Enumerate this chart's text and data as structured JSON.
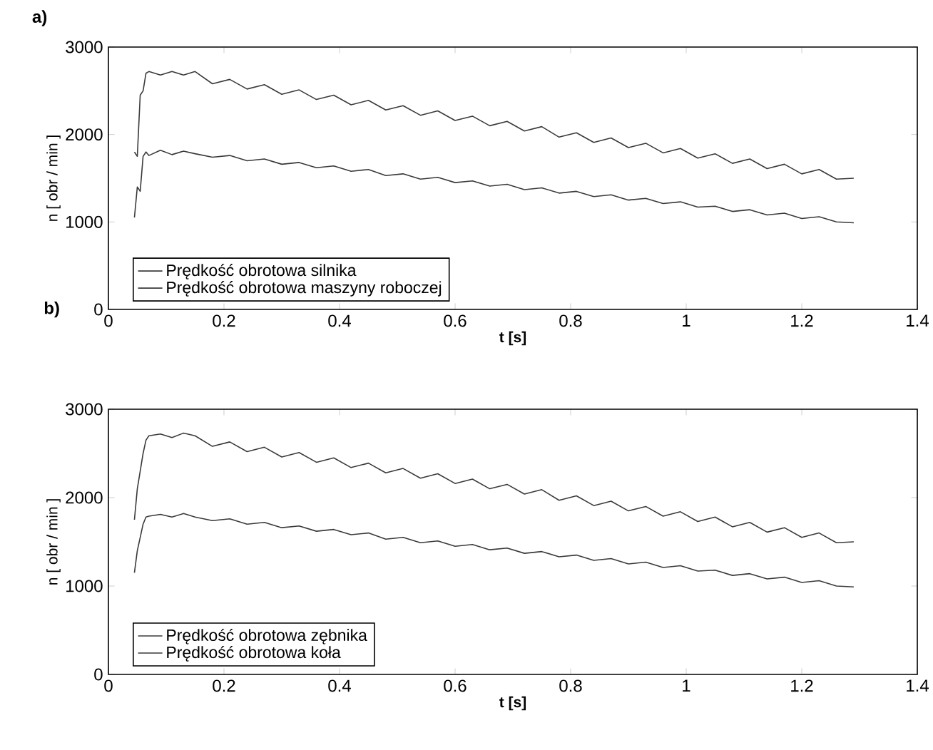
{
  "chart_data": [
    {
      "type": "line",
      "annotations": [
        "a)"
      ],
      "xlabel": "t [s]",
      "ylabel": "n [ obr / min ]",
      "xlim": [
        0,
        1.4
      ],
      "ylim": [
        0,
        3000
      ],
      "xticks": [
        0,
        0.2,
        0.4,
        0.6,
        0.8,
        1,
        1.2,
        1.4
      ],
      "yticks": [
        0,
        1000,
        2000,
        3000
      ],
      "legend": "bottom left",
      "series": [
        {
          "name": "Prędkość obrotowa silnika",
          "color": "#3a3a3a",
          "x": [
            0.045,
            0.05,
            0.055,
            0.06,
            0.065,
            0.07,
            0.09,
            0.11,
            0.13,
            0.15,
            0.18,
            0.21,
            0.24,
            0.27,
            0.3,
            0.33,
            0.36,
            0.39,
            0.42,
            0.45,
            0.48,
            0.51,
            0.54,
            0.57,
            0.6,
            0.63,
            0.66,
            0.69,
            0.72,
            0.75,
            0.78,
            0.81,
            0.84,
            0.87,
            0.9,
            0.93,
            0.96,
            0.99,
            1.02,
            1.05,
            1.08,
            1.11,
            1.14,
            1.17,
            1.2,
            1.23,
            1.26,
            1.29
          ],
          "values": [
            1800,
            1750,
            2450,
            2500,
            2700,
            2720,
            2680,
            2720,
            2680,
            2720,
            2580,
            2630,
            2520,
            2570,
            2460,
            2510,
            2400,
            2450,
            2340,
            2390,
            2280,
            2330,
            2220,
            2270,
            2160,
            2210,
            2100,
            2150,
            2040,
            2090,
            1970,
            2020,
            1910,
            1960,
            1850,
            1900,
            1790,
            1840,
            1730,
            1780,
            1670,
            1720,
            1610,
            1660,
            1550,
            1600,
            1490,
            1500
          ]
        },
        {
          "name": "Prędkość obrotowa maszyny roboczej",
          "color": "#3a3a3a",
          "x": [
            0.045,
            0.05,
            0.055,
            0.06,
            0.065,
            0.07,
            0.09,
            0.11,
            0.13,
            0.15,
            0.18,
            0.21,
            0.24,
            0.27,
            0.3,
            0.33,
            0.36,
            0.39,
            0.42,
            0.45,
            0.48,
            0.51,
            0.54,
            0.57,
            0.6,
            0.63,
            0.66,
            0.69,
            0.72,
            0.75,
            0.78,
            0.81,
            0.84,
            0.87,
            0.9,
            0.93,
            0.96,
            0.99,
            1.02,
            1.05,
            1.08,
            1.11,
            1.14,
            1.17,
            1.2,
            1.23,
            1.26,
            1.29
          ],
          "values": [
            1050,
            1400,
            1350,
            1750,
            1800,
            1760,
            1820,
            1770,
            1810,
            1780,
            1740,
            1760,
            1700,
            1720,
            1660,
            1680,
            1620,
            1640,
            1580,
            1600,
            1530,
            1550,
            1490,
            1510,
            1450,
            1470,
            1410,
            1430,
            1370,
            1390,
            1330,
            1350,
            1290,
            1310,
            1250,
            1270,
            1210,
            1230,
            1170,
            1180,
            1120,
            1140,
            1080,
            1100,
            1040,
            1060,
            1000,
            990
          ]
        }
      ]
    },
    {
      "type": "line",
      "annotations": [
        "b)"
      ],
      "xlabel": "t [s]",
      "ylabel": "n [ obr / min ]",
      "xlim": [
        0,
        1.4
      ],
      "ylim": [
        0,
        3000
      ],
      "xticks": [
        0,
        0.2,
        0.4,
        0.6,
        0.8,
        1,
        1.2,
        1.4
      ],
      "yticks": [
        0,
        1000,
        2000,
        3000
      ],
      "legend": "bottom left",
      "series": [
        {
          "name": "Prędkość obrotowa zębnika",
          "color": "#3a3a3a",
          "x": [
            0.045,
            0.05,
            0.055,
            0.06,
            0.065,
            0.07,
            0.09,
            0.11,
            0.13,
            0.15,
            0.18,
            0.21,
            0.24,
            0.27,
            0.3,
            0.33,
            0.36,
            0.39,
            0.42,
            0.45,
            0.48,
            0.51,
            0.54,
            0.57,
            0.6,
            0.63,
            0.66,
            0.69,
            0.72,
            0.75,
            0.78,
            0.81,
            0.84,
            0.87,
            0.9,
            0.93,
            0.96,
            0.99,
            1.02,
            1.05,
            1.08,
            1.11,
            1.14,
            1.17,
            1.2,
            1.23,
            1.26,
            1.29
          ],
          "values": [
            1750,
            2100,
            2300,
            2500,
            2650,
            2700,
            2720,
            2680,
            2730,
            2700,
            2580,
            2630,
            2520,
            2570,
            2460,
            2510,
            2400,
            2450,
            2340,
            2390,
            2280,
            2330,
            2220,
            2270,
            2160,
            2210,
            2100,
            2150,
            2040,
            2090,
            1970,
            2020,
            1910,
            1960,
            1850,
            1900,
            1790,
            1840,
            1730,
            1780,
            1670,
            1720,
            1610,
            1660,
            1550,
            1600,
            1490,
            1500
          ]
        },
        {
          "name": "Prędkość obrotowa koła",
          "color": "#3a3a3a",
          "x": [
            0.045,
            0.05,
            0.055,
            0.06,
            0.065,
            0.07,
            0.09,
            0.11,
            0.13,
            0.15,
            0.18,
            0.21,
            0.24,
            0.27,
            0.3,
            0.33,
            0.36,
            0.39,
            0.42,
            0.45,
            0.48,
            0.51,
            0.54,
            0.57,
            0.6,
            0.63,
            0.66,
            0.69,
            0.72,
            0.75,
            0.78,
            0.81,
            0.84,
            0.87,
            0.9,
            0.93,
            0.96,
            0.99,
            1.02,
            1.05,
            1.08,
            1.11,
            1.14,
            1.17,
            1.2,
            1.23,
            1.26,
            1.29
          ],
          "values": [
            1150,
            1400,
            1550,
            1700,
            1780,
            1790,
            1810,
            1780,
            1820,
            1780,
            1740,
            1760,
            1700,
            1720,
            1660,
            1680,
            1620,
            1640,
            1580,
            1600,
            1530,
            1550,
            1490,
            1510,
            1450,
            1470,
            1410,
            1430,
            1370,
            1390,
            1330,
            1350,
            1290,
            1310,
            1250,
            1270,
            1210,
            1230,
            1170,
            1180,
            1120,
            1140,
            1080,
            1100,
            1040,
            1060,
            1000,
            990
          ]
        }
      ]
    }
  ]
}
